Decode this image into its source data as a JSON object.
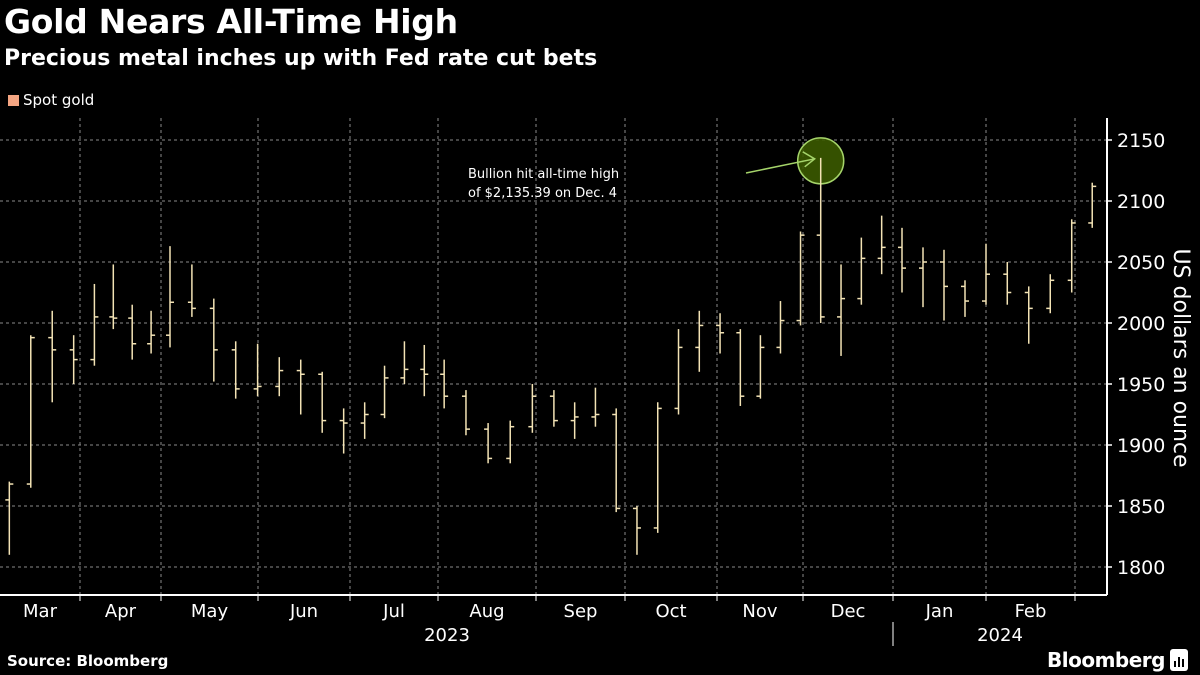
{
  "header": {
    "title": "Gold Nears All-Time High",
    "subtitle": "Precious metal inches up with Fed rate cut bets"
  },
  "footer": {
    "source": "Source: Bloomberg",
    "logo": "Bloomberg"
  },
  "chart_data": {
    "type": "ohlc",
    "title": "Gold Nears All-Time High",
    "subtitle": "Precious metal inches up with Fed rate cut bets",
    "ylabel": "US dollars an ounce",
    "xlabel": "",
    "y_axis_position": "right",
    "ylim": [
      1780,
      2170
    ],
    "yticks": [
      1800,
      1850,
      1900,
      1950,
      2000,
      2050,
      2100,
      2150
    ],
    "xticks": [
      "Mar",
      "Apr",
      "May",
      "Jun",
      "Jul",
      "Aug",
      "Sep",
      "Oct",
      "Nov",
      "Dec",
      "Jan",
      "Feb"
    ],
    "years": [
      "2023",
      "2024"
    ],
    "grid": true,
    "legend_position": "top-left",
    "series": [
      {
        "name": "Spot gold",
        "color": "#f4a582",
        "bar_color": "#f3e3b5",
        "points": [
          {
            "date": "2023-03-06",
            "open": 1855,
            "high": 1870,
            "low": 1810,
            "close": 1868
          },
          {
            "date": "2023-03-13",
            "open": 1868,
            "high": 1990,
            "low": 1865,
            "close": 1988
          },
          {
            "date": "2023-03-20",
            "open": 1988,
            "high": 2010,
            "low": 1935,
            "close": 1978
          },
          {
            "date": "2023-03-27",
            "open": 1978,
            "high": 1990,
            "low": 1950,
            "close": 1970
          },
          {
            "date": "2023-04-03",
            "open": 1970,
            "high": 2032,
            "low": 1965,
            "close": 2005
          },
          {
            "date": "2023-04-10",
            "open": 2005,
            "high": 2048,
            "low": 1995,
            "close": 2004
          },
          {
            "date": "2023-04-17",
            "open": 2004,
            "high": 2015,
            "low": 1970,
            "close": 1983
          },
          {
            "date": "2023-04-24",
            "open": 1983,
            "high": 2010,
            "low": 1975,
            "close": 1990
          },
          {
            "date": "2023-05-01",
            "open": 1990,
            "high": 2063,
            "low": 1980,
            "close": 2017
          },
          {
            "date": "2023-05-08",
            "open": 2017,
            "high": 2048,
            "low": 2005,
            "close": 2012
          },
          {
            "date": "2023-05-15",
            "open": 2012,
            "high": 2020,
            "low": 1952,
            "close": 1978
          },
          {
            "date": "2023-05-22",
            "open": 1978,
            "high": 1985,
            "low": 1938,
            "close": 1946
          },
          {
            "date": "2023-05-29",
            "open": 1946,
            "high": 1983,
            "low": 1940,
            "close": 1948
          },
          {
            "date": "2023-06-05",
            "open": 1948,
            "high": 1972,
            "low": 1940,
            "close": 1961
          },
          {
            "date": "2023-06-12",
            "open": 1961,
            "high": 1970,
            "low": 1925,
            "close": 1958
          },
          {
            "date": "2023-06-19",
            "open": 1958,
            "high": 1960,
            "low": 1910,
            "close": 1920
          },
          {
            "date": "2023-06-26",
            "open": 1920,
            "high": 1930,
            "low": 1893,
            "close": 1918
          },
          {
            "date": "2023-07-03",
            "open": 1918,
            "high": 1935,
            "low": 1905,
            "close": 1925
          },
          {
            "date": "2023-07-10",
            "open": 1925,
            "high": 1965,
            "low": 1922,
            "close": 1955
          },
          {
            "date": "2023-07-17",
            "open": 1955,
            "high": 1985,
            "low": 1950,
            "close": 1962
          },
          {
            "date": "2023-07-24",
            "open": 1962,
            "high": 1982,
            "low": 1940,
            "close": 1958
          },
          {
            "date": "2023-07-31",
            "open": 1958,
            "high": 1970,
            "low": 1930,
            "close": 1940
          },
          {
            "date": "2023-08-07",
            "open": 1940,
            "high": 1945,
            "low": 1908,
            "close": 1913
          },
          {
            "date": "2023-08-14",
            "open": 1913,
            "high": 1918,
            "low": 1885,
            "close": 1889
          },
          {
            "date": "2023-08-21",
            "open": 1889,
            "high": 1920,
            "low": 1885,
            "close": 1915
          },
          {
            "date": "2023-08-28",
            "open": 1915,
            "high": 1950,
            "low": 1910,
            "close": 1940
          },
          {
            "date": "2023-09-04",
            "open": 1940,
            "high": 1945,
            "low": 1915,
            "close": 1920
          },
          {
            "date": "2023-09-11",
            "open": 1920,
            "high": 1935,
            "low": 1905,
            "close": 1923
          },
          {
            "date": "2023-09-18",
            "open": 1923,
            "high": 1947,
            "low": 1915,
            "close": 1925
          },
          {
            "date": "2023-09-25",
            "open": 1925,
            "high": 1930,
            "low": 1845,
            "close": 1848
          },
          {
            "date": "2023-10-02",
            "open": 1848,
            "high": 1850,
            "low": 1810,
            "close": 1832
          },
          {
            "date": "2023-10-09",
            "open": 1832,
            "high": 1935,
            "low": 1828,
            "close": 1930
          },
          {
            "date": "2023-10-16",
            "open": 1930,
            "high": 1995,
            "low": 1925,
            "close": 1980
          },
          {
            "date": "2023-10-23",
            "open": 1980,
            "high": 2010,
            "low": 1960,
            "close": 1998
          },
          {
            "date": "2023-10-30",
            "open": 1998,
            "high": 2008,
            "low": 1975,
            "close": 1992
          },
          {
            "date": "2023-11-06",
            "open": 1992,
            "high": 1995,
            "low": 1932,
            "close": 1940
          },
          {
            "date": "2023-11-13",
            "open": 1940,
            "high": 1990,
            "low": 1938,
            "close": 1980
          },
          {
            "date": "2023-11-20",
            "open": 1980,
            "high": 2018,
            "low": 1975,
            "close": 2002
          },
          {
            "date": "2023-11-27",
            "open": 2002,
            "high": 2075,
            "low": 1998,
            "close": 2072
          },
          {
            "date": "2023-12-04",
            "open": 2072,
            "high": 2135.39,
            "low": 2000,
            "close": 2005
          },
          {
            "date": "2023-12-11",
            "open": 2005,
            "high": 2048,
            "low": 1973,
            "close": 2020
          },
          {
            "date": "2023-12-18",
            "open": 2020,
            "high": 2070,
            "low": 2015,
            "close": 2053
          },
          {
            "date": "2023-12-25",
            "open": 2053,
            "high": 2088,
            "low": 2040,
            "close": 2062
          },
          {
            "date": "2024-01-01",
            "open": 2062,
            "high": 2078,
            "low": 2025,
            "close": 2045
          },
          {
            "date": "2024-01-08",
            "open": 2045,
            "high": 2062,
            "low": 2013,
            "close": 2050
          },
          {
            "date": "2024-01-15",
            "open": 2050,
            "high": 2060,
            "low": 2002,
            "close": 2030
          },
          {
            "date": "2024-01-22",
            "open": 2030,
            "high": 2035,
            "low": 2005,
            "close": 2018
          },
          {
            "date": "2024-01-29",
            "open": 2018,
            "high": 2065,
            "low": 2015,
            "close": 2040
          },
          {
            "date": "2024-02-05",
            "open": 2040,
            "high": 2050,
            "low": 2015,
            "close": 2025
          },
          {
            "date": "2024-02-12",
            "open": 2025,
            "high": 2030,
            "low": 1983,
            "close": 2012
          },
          {
            "date": "2024-02-19",
            "open": 2012,
            "high": 2040,
            "low": 2008,
            "close": 2035
          },
          {
            "date": "2024-02-26",
            "open": 2035,
            "high": 2085,
            "low": 2025,
            "close": 2082
          },
          {
            "date": "2024-03-04",
            "open": 2082,
            "high": 2115,
            "low": 2078,
            "close": 2112
          }
        ]
      }
    ],
    "annotations": [
      {
        "text_lines": [
          "Bullion hit all-time high",
          "of $2,135.39 on Dec. 4"
        ],
        "date": "2023-12-04",
        "value": 2135.39,
        "marker_fill": "#3b5a00",
        "marker_stroke": "#a5d46a"
      }
    ]
  }
}
